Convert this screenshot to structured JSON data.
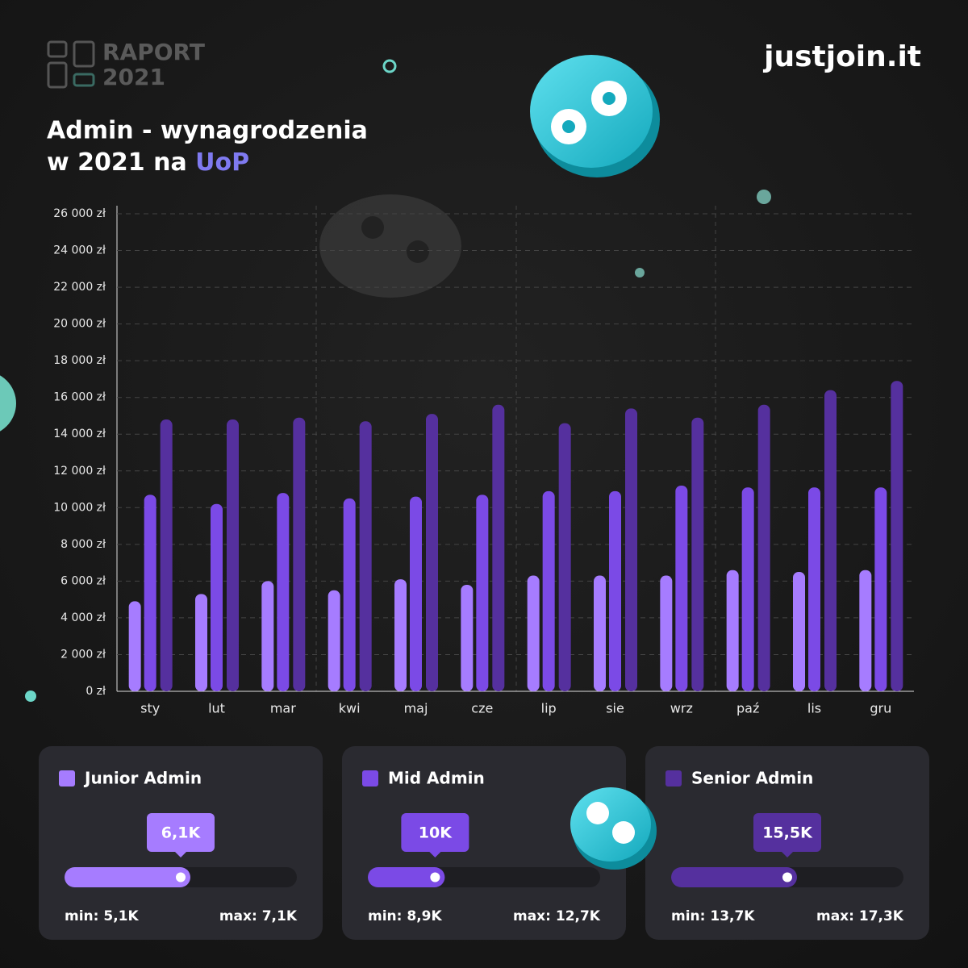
{
  "header": {
    "brand": "justjoin.it",
    "report": "RAPORT",
    "year": "2021"
  },
  "chart_data": {
    "type": "bar",
    "title_line1": "Admin - wynagrodzenia",
    "title_line2": "w 2021 na",
    "title_highlight": "UoP",
    "categories": [
      "sty",
      "lut",
      "mar",
      "kwi",
      "maj",
      "cze",
      "lip",
      "sie",
      "wrz",
      "paź",
      "lis",
      "gru"
    ],
    "series": [
      {
        "name": "Junior Admin",
        "color": "#a67cff",
        "values": [
          4900,
          5300,
          6000,
          5500,
          6100,
          5800,
          6300,
          6300,
          6300,
          6600,
          6500,
          6600
        ]
      },
      {
        "name": "Mid Admin",
        "color": "#7b4ae6",
        "values": [
          10700,
          10200,
          10800,
          10500,
          10600,
          10700,
          10900,
          10900,
          11200,
          11100,
          11100,
          11100
        ]
      },
      {
        "name": "Senior Admin",
        "color": "#55309e",
        "values": [
          14800,
          14800,
          14900,
          14700,
          15100,
          15600,
          14600,
          15400,
          14900,
          15600,
          16400,
          16900
        ]
      }
    ],
    "ylim": [
      0,
      26000
    ],
    "yticks": [
      {
        "value": 0,
        "label": "0 zł"
      },
      {
        "value": 2000,
        "label": "2 000 zł"
      },
      {
        "value": 4000,
        "label": "4 000 zł"
      },
      {
        "value": 6000,
        "label": "6 000 zł"
      },
      {
        "value": 8000,
        "label": "8 000 zł"
      },
      {
        "value": 10000,
        "label": "10 000 zł"
      },
      {
        "value": 12000,
        "label": "12 000 zł"
      },
      {
        "value": 14000,
        "label": "14 000 zł"
      },
      {
        "value": 16000,
        "label": "16 000 zł"
      },
      {
        "value": 18000,
        "label": "18 000 zł"
      },
      {
        "value": 20000,
        "label": "20 000 zł"
      },
      {
        "value": 22000,
        "label": "22 000 zł"
      },
      {
        "value": 24000,
        "label": "24 000 zł"
      },
      {
        "value": 26000,
        "label": "26 000 zł"
      }
    ],
    "grid": true
  },
  "cards": [
    {
      "value": 6100,
      "value_label": "6,1K",
      "min": 5100,
      "min_label": "min: 5,1K",
      "max": 7100,
      "max_label": "max: 7,1K"
    },
    {
      "value": 10000,
      "value_label": "10K",
      "min": 8900,
      "min_label": "min: 8,9K",
      "max": 12700,
      "max_label": "max: 12,7K"
    },
    {
      "value": 15500,
      "value_label": "15,5K",
      "min": 13700,
      "min_label": "min: 13,7K",
      "max": 17300,
      "max_label": "max: 17,3K"
    }
  ]
}
